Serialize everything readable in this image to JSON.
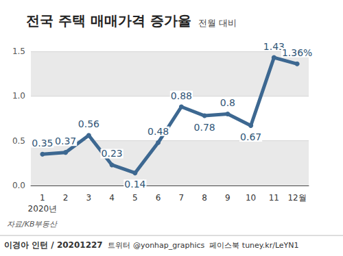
{
  "chart_data": {
    "type": "line",
    "title": "전국 주택 매매가격 증가율",
    "subtitle": "전월 대비",
    "categories": [
      "1\n2020년",
      "2",
      "3",
      "4",
      "5",
      "6",
      "7",
      "8",
      "9",
      "10",
      "11",
      "12월"
    ],
    "values": [
      0.35,
      0.37,
      0.56,
      0.23,
      0.14,
      0.48,
      0.88,
      0.78,
      0.8,
      0.67,
      1.43,
      1.36
    ],
    "value_labels": [
      "0.35",
      "0.37",
      "0.56",
      "0.23",
      "0.14",
      "0.48",
      "0.88",
      "0.78",
      "0.8",
      "0.67",
      "1.43",
      "1.36%"
    ],
    "color": "#3d6891",
    "ylim": [
      0,
      1.5
    ],
    "yticks": [
      {
        "value": 0,
        "label": "0.0"
      },
      {
        "value": 0.5,
        "label": "0.5"
      },
      {
        "value": 1,
        "label": "1.0"
      },
      {
        "value": 1.5,
        "label": "1.5"
      }
    ],
    "grid": true,
    "data_labels": true,
    "marker": "circle",
    "source": "자료/KB부동산",
    "credit": "이경아 인턴 / 20201227",
    "footer": "트위터 @yonhap_graphics  페이스북 tuney.kr/LeYN1"
  }
}
